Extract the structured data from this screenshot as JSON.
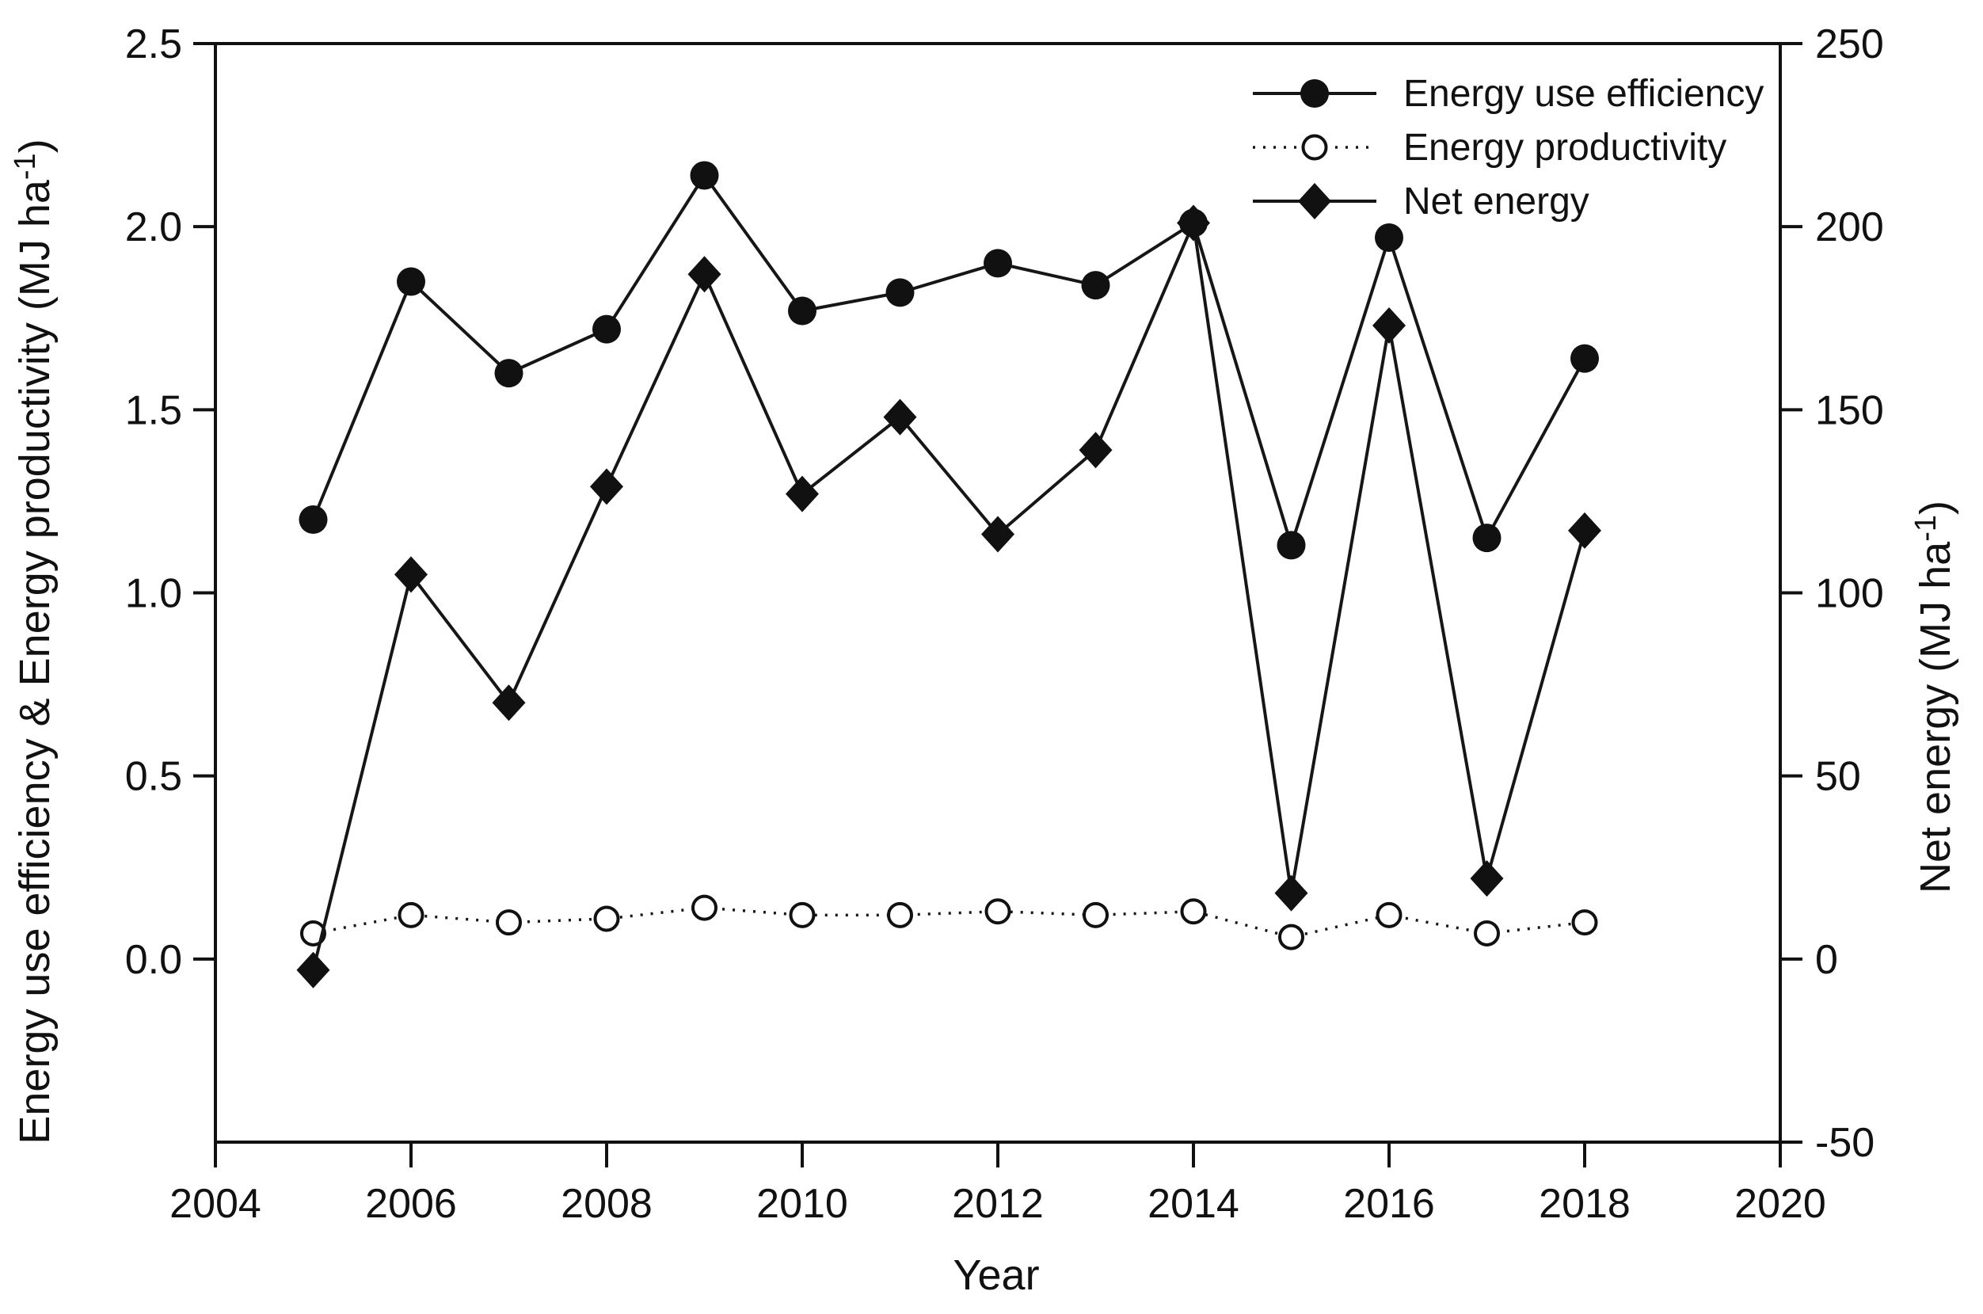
{
  "figure": {
    "x_axis_title": "Year",
    "left_axis_title_main": "Energy use efficiency & Energy productivity (MJ ha",
    "left_axis_title_sup": "-1",
    "left_axis_title_close": ")",
    "right_axis_title_main": "Net energy (MJ ha",
    "right_axis_title_sup": "-1",
    "right_axis_title_close": ")"
  },
  "legend": {
    "items": [
      {
        "label": "Energy use efficiency",
        "marker": "filled-circle",
        "line": "solid"
      },
      {
        "label": "Energy productivity",
        "marker": "open-circle",
        "line": "dotted"
      },
      {
        "label": "Net energy",
        "marker": "filled-diamond",
        "line": "solid"
      }
    ]
  },
  "chart_data": {
    "type": "line",
    "title": "",
    "xlabel": "Year",
    "ylabel_left": "Energy use efficiency & Energy productivity (MJ ha-1)",
    "ylabel_right": "Net energy (MJ ha-1)",
    "x": [
      2005,
      2006,
      2007,
      2008,
      2009,
      2010,
      2011,
      2012,
      2013,
      2014,
      2015,
      2016,
      2017,
      2018
    ],
    "series": [
      {
        "name": "Energy use efficiency",
        "axis": "left",
        "marker": "filled-circle",
        "line": "solid",
        "values": [
          1.2,
          1.85,
          1.6,
          1.72,
          2.14,
          1.77,
          1.82,
          1.9,
          1.84,
          2.01,
          1.13,
          1.97,
          1.15,
          1.64
        ]
      },
      {
        "name": "Energy productivity",
        "axis": "left",
        "marker": "open-circle",
        "line": "dotted",
        "values": [
          0.07,
          0.12,
          0.1,
          0.11,
          0.14,
          0.12,
          0.12,
          0.13,
          0.12,
          0.13,
          0.06,
          0.12,
          0.07,
          0.1
        ]
      },
      {
        "name": "Net energy",
        "axis": "right",
        "marker": "filled-diamond",
        "line": "solid",
        "values": [
          -3,
          105,
          70,
          129,
          187,
          127,
          148,
          116,
          139,
          201,
          18,
          173,
          22,
          117
        ]
      }
    ],
    "x_range": [
      2004,
      2020
    ],
    "left_range": [
      -0.5,
      2.5
    ],
    "right_range": [
      -50,
      250
    ],
    "x_ticks": {
      "labels": [
        "2004",
        "2006",
        "2008",
        "2010",
        "2012",
        "2014",
        "2016",
        "2018",
        "2020"
      ],
      "values": [
        2004,
        2006,
        2008,
        2010,
        2012,
        2014,
        2016,
        2018,
        2020
      ]
    },
    "left_ticks": {
      "labels": [
        "0.0",
        "0.5",
        "1.0",
        "1.5",
        "2.0",
        "2.5"
      ],
      "values": [
        0.0,
        0.5,
        1.0,
        1.5,
        2.0,
        2.5
      ]
    },
    "right_ticks": {
      "labels": [
        "-50",
        "0",
        "50",
        "100",
        "150",
        "200",
        "250"
      ],
      "values": [
        -50,
        0,
        50,
        100,
        150,
        200,
        250
      ]
    },
    "grid": "off",
    "legend_position": "inside-top-right",
    "colors": {
      "ink": "#111111",
      "background": "#ffffff"
    }
  }
}
